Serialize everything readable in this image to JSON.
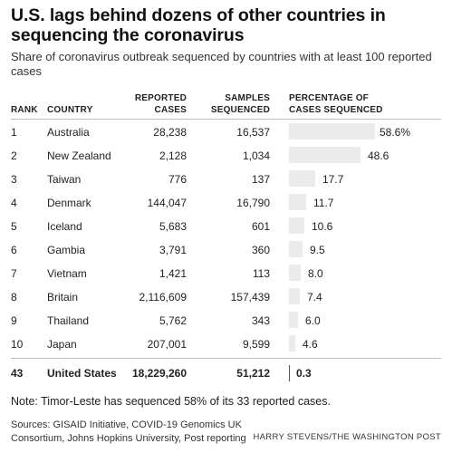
{
  "title": "U.S. lags behind dozens of other countries in sequencing the coronavirus",
  "subtitle": "Share of coronavirus outbreak sequenced by countries with at least 100 reported cases",
  "headers": {
    "rank": "RANK",
    "country": "COUNTRY",
    "reported_line1": "REPORTED",
    "reported_line2": "CASES",
    "samples_line1": "SAMPLES",
    "samples_line2": "SEQUENCED",
    "pct_line1": "PERCENTAGE OF",
    "pct_line2": "CASES SEQUENCED"
  },
  "chart_data": {
    "type": "table",
    "columns": [
      "RANK",
      "COUNTRY",
      "REPORTED CASES",
      "SAMPLES SEQUENCED",
      "PERCENTAGE OF CASES SEQUENCED"
    ],
    "rows": [
      {
        "rank": "1",
        "country": "Australia",
        "reported": "28,238",
        "samples": "16,537",
        "pct": 58.6,
        "pct_label": "58.6%"
      },
      {
        "rank": "2",
        "country": "New Zealand",
        "reported": "2,128",
        "samples": "1,034",
        "pct": 48.6,
        "pct_label": "48.6"
      },
      {
        "rank": "3",
        "country": "Taiwan",
        "reported": "776",
        "samples": "137",
        "pct": 17.7,
        "pct_label": "17.7"
      },
      {
        "rank": "4",
        "country": "Denmark",
        "reported": "144,047",
        "samples": "16,790",
        "pct": 11.7,
        "pct_label": "11.7"
      },
      {
        "rank": "5",
        "country": "Iceland",
        "reported": "5,683",
        "samples": "601",
        "pct": 10.6,
        "pct_label": "10.6"
      },
      {
        "rank": "6",
        "country": "Gambia",
        "reported": "3,791",
        "samples": "360",
        "pct": 9.5,
        "pct_label": "9.5"
      },
      {
        "rank": "7",
        "country": "Vietnam",
        "reported": "1,421",
        "samples": "113",
        "pct": 8.0,
        "pct_label": "8.0"
      },
      {
        "rank": "8",
        "country": "Britain",
        "reported": "2,116,609",
        "samples": "157,439",
        "pct": 7.4,
        "pct_label": "7.4"
      },
      {
        "rank": "9",
        "country": "Thailand",
        "reported": "5,762",
        "samples": "343",
        "pct": 6.0,
        "pct_label": "6.0"
      },
      {
        "rank": "10",
        "country": "Japan",
        "reported": "207,001",
        "samples": "9,599",
        "pct": 4.6,
        "pct_label": "4.6"
      }
    ],
    "highlight_row": {
      "rank": "43",
      "country": "United States",
      "reported": "18,229,260",
      "samples": "51,212",
      "pct": 0.3,
      "pct_label": "0.3"
    },
    "bar_max": 58.6
  },
  "note": "Note: Timor-Leste has sequenced 58% of its 33 reported cases.",
  "sources": "Sources: GISAID Initiative, COVID-19 Genomics UK Consortium, Johns Hopkins University, Post reporting",
  "credit": "HARRY STEVENS/THE WASHINGTON POST",
  "colors": {
    "bar": "#ebebeb",
    "text": "#222222",
    "rule": "#bdbdbd"
  }
}
